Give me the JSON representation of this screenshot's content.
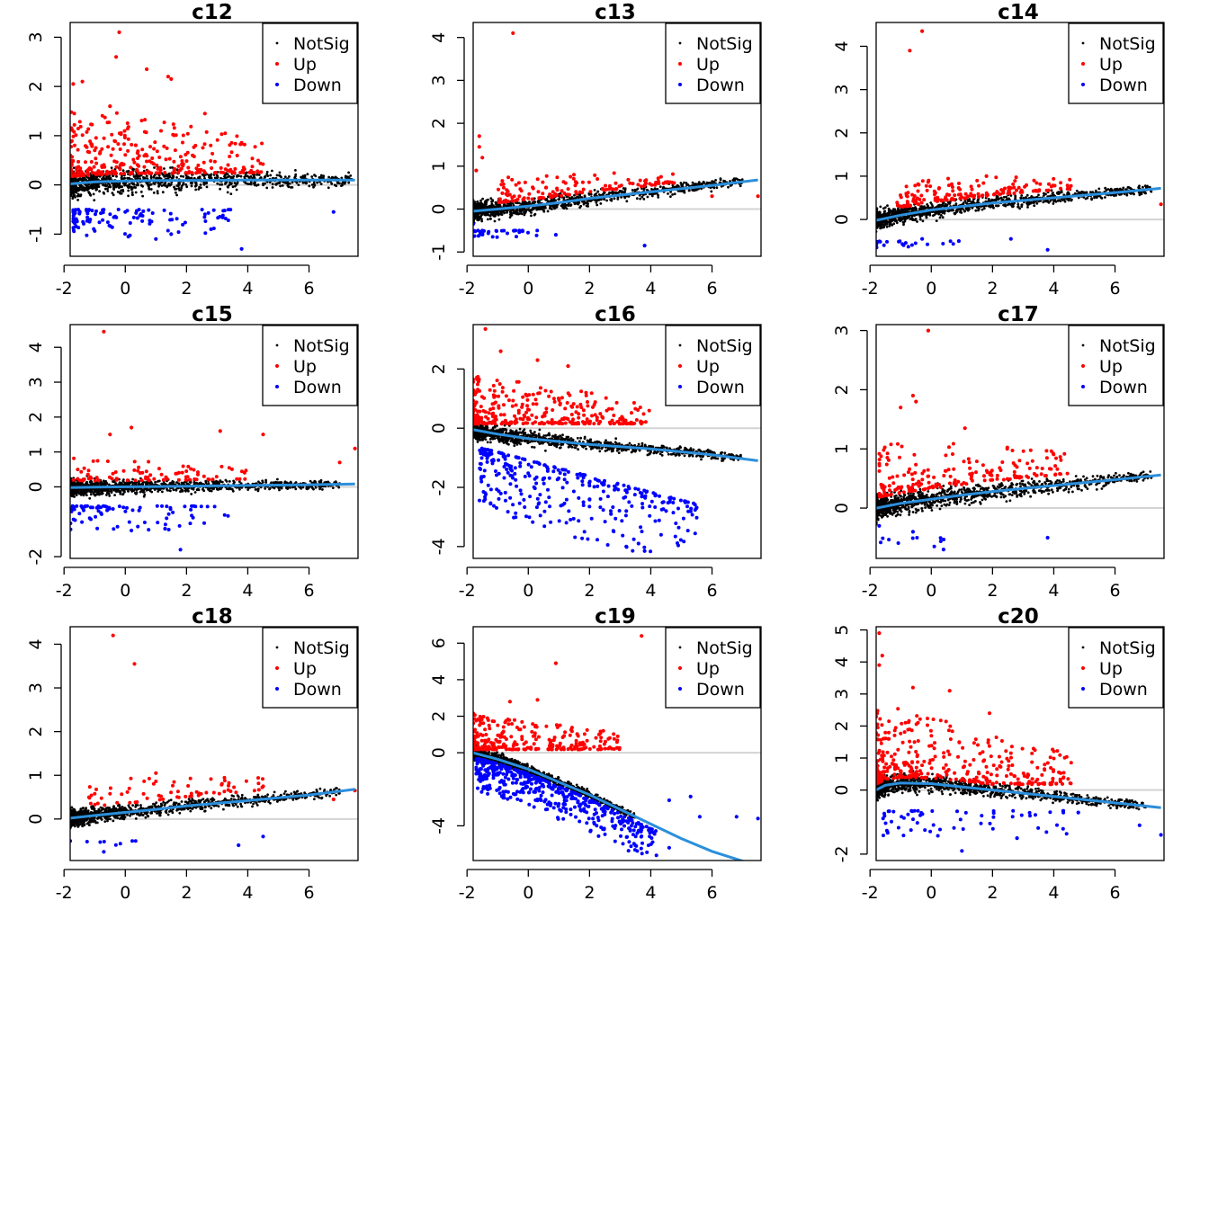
{
  "figure": {
    "kind": "MD plot grid",
    "legend_entries": [
      "NotSig",
      "Up",
      "Down"
    ]
  },
  "colors": {
    "notsig": "#000000",
    "up": "#ff0000",
    "down": "#0000ff",
    "trend": "#2b8fdc",
    "zero_line": "#d3d3d3",
    "axis": "#000000"
  },
  "chart_data": [
    {
      "type": "scatter",
      "title": "c12",
      "xlim": [
        -1.8,
        7.6
      ],
      "ylim": [
        -1.45,
        3.3
      ],
      "xticks": [
        -2,
        0,
        2,
        4,
        6
      ],
      "yticks": [
        -1,
        0,
        1,
        2,
        3
      ],
      "legend": [
        "NotSig",
        "Up",
        "Down"
      ],
      "trend": {
        "x": [
          -1.8,
          -1,
          0,
          1,
          2,
          4,
          6,
          7.5
        ],
        "y": [
          0.02,
          0.06,
          0.08,
          0.09,
          0.09,
          0.1,
          0.1,
          0.1
        ]
      },
      "highlight_points": {
        "up": [
          [
            -0.2,
            3.1
          ],
          [
            -0.3,
            2.6
          ],
          [
            0.7,
            2.35
          ],
          [
            1.5,
            2.15
          ],
          [
            1.4,
            2.2
          ],
          [
            -1.4,
            2.1
          ],
          [
            -1.7,
            2.05
          ],
          [
            2.6,
            1.45
          ],
          [
            -0.5,
            1.6
          ]
        ],
        "down": [
          [
            3.8,
            -1.3
          ],
          [
            1.0,
            -1.1
          ],
          [
            0.1,
            -1.05
          ],
          [
            1.5,
            -1.0
          ],
          [
            2.8,
            -0.9
          ],
          [
            6.8,
            -0.55
          ]
        ]
      },
      "clouds": {
        "notsig": {
          "n": 1100,
          "x": [
            -1.8,
            7.4
          ],
          "y": [
            -0.3,
            0.3
          ],
          "trend": true
        },
        "up": {
          "n": 320,
          "x": [
            -1.8,
            4.5
          ],
          "y": [
            0.25,
            1.7
          ],
          "decay": 0.55
        },
        "down": {
          "n": 110,
          "x": [
            -1.7,
            3.8
          ],
          "y": [
            -0.8,
            -0.25
          ],
          "decay": 0.7
        }
      }
    },
    {
      "type": "scatter",
      "title": "c13",
      "xlim": [
        -1.8,
        7.6
      ],
      "ylim": [
        -1.1,
        4.35
      ],
      "xticks": [
        -2,
        0,
        2,
        4,
        6
      ],
      "yticks": [
        -1,
        0,
        1,
        2,
        3,
        4
      ],
      "legend": [
        "NotSig",
        "Up",
        "Down"
      ],
      "trend": {
        "x": [
          -1.8,
          -1,
          0,
          1,
          2,
          4,
          6,
          7.5
        ],
        "y": [
          -0.05,
          0.0,
          0.07,
          0.15,
          0.25,
          0.4,
          0.55,
          0.68
        ]
      },
      "highlight_points": {
        "up": [
          [
            -0.5,
            4.1
          ],
          [
            -1.6,
            1.7
          ],
          [
            -1.6,
            1.45
          ],
          [
            -1.5,
            1.2
          ],
          [
            -1.7,
            0.9
          ],
          [
            7.5,
            0.3
          ],
          [
            6.0,
            0.3
          ]
        ],
        "down": [
          [
            3.8,
            -0.85
          ],
          [
            0.9,
            -0.6
          ],
          [
            -1.8,
            -0.35
          ]
        ]
      },
      "clouds": {
        "notsig": {
          "n": 1200,
          "x": [
            -1.8,
            7.0
          ],
          "y": [
            -0.22,
            0.22
          ],
          "trend": true
        },
        "up": {
          "n": 130,
          "x": [
            -1.0,
            4.8
          ],
          "y": [
            0.25,
            0.85
          ],
          "decay": 0.3
        },
        "down": {
          "n": 35,
          "x": [
            -1.8,
            0.5
          ],
          "y": [
            -0.45,
            -0.25
          ],
          "decay": 0.5
        }
      }
    },
    {
      "type": "scatter",
      "title": "c14",
      "xlim": [
        -1.8,
        7.6
      ],
      "ylim": [
        -0.85,
        4.55
      ],
      "xticks": [
        -2,
        0,
        2,
        4,
        6
      ],
      "yticks": [
        0,
        1,
        2,
        3,
        4
      ],
      "legend": [
        "NotSig",
        "Up",
        "Down"
      ],
      "trend": {
        "x": [
          -1.8,
          -1,
          0,
          1,
          2,
          4,
          6,
          7.5
        ],
        "y": [
          -0.02,
          0.1,
          0.22,
          0.3,
          0.38,
          0.5,
          0.62,
          0.72
        ]
      },
      "highlight_points": {
        "up": [
          [
            -0.3,
            4.35
          ],
          [
            -0.7,
            3.9
          ],
          [
            7.5,
            0.35
          ],
          [
            1.8,
            1.0
          ]
        ],
        "down": [
          [
            3.8,
            -0.7
          ],
          [
            0.9,
            -0.5
          ],
          [
            2.6,
            -0.45
          ],
          [
            -0.3,
            -0.45
          ]
        ]
      },
      "clouds": {
        "notsig": {
          "n": 1200,
          "x": [
            -1.8,
            7.2
          ],
          "y": [
            -0.22,
            0.22
          ],
          "trend": true
        },
        "up": {
          "n": 160,
          "x": [
            -1.2,
            4.6
          ],
          "y": [
            0.3,
            0.9
          ],
          "decay": 0.35
        },
        "down": {
          "n": 20,
          "x": [
            -1.8,
            2.5
          ],
          "y": [
            -0.45,
            -0.25
          ],
          "decay": 0.6
        }
      }
    },
    {
      "type": "scatter",
      "title": "c15",
      "xlim": [
        -1.8,
        7.6
      ],
      "ylim": [
        -2.05,
        4.65
      ],
      "xticks": [
        -2,
        0,
        2,
        4,
        6
      ],
      "yticks": [
        -2,
        0,
        1,
        2,
        3,
        4
      ],
      "legend": [
        "NotSig",
        "Up",
        "Down"
      ],
      "trend": {
        "x": [
          -1.8,
          -1,
          0,
          1,
          2,
          4,
          6,
          7.5
        ],
        "y": [
          -0.02,
          -0.01,
          0.0,
          0.01,
          0.02,
          0.04,
          0.06,
          0.08
        ]
      },
      "highlight_points": {
        "up": [
          [
            -0.7,
            4.45
          ],
          [
            3.1,
            1.6
          ],
          [
            0.2,
            1.7
          ],
          [
            4.5,
            1.5
          ],
          [
            7.5,
            1.1
          ],
          [
            -0.5,
            1.5
          ],
          [
            7.0,
            0.7
          ]
        ],
        "down": [
          [
            1.8,
            -1.8
          ],
          [
            0.2,
            -1.25
          ],
          [
            1.3,
            -1.2
          ]
        ]
      },
      "clouds": {
        "notsig": {
          "n": 1150,
          "x": [
            -1.8,
            7.0
          ],
          "y": [
            -0.25,
            0.25
          ],
          "trend": true
        },
        "up": {
          "n": 85,
          "x": [
            -1.7,
            4.0
          ],
          "y": [
            0.3,
            1.0
          ],
          "decay": 0.35
        },
        "down": {
          "n": 80,
          "x": [
            -1.8,
            3.5
          ],
          "y": [
            -1.0,
            -0.3
          ],
          "decay": 0.45
        }
      }
    },
    {
      "type": "scatter",
      "title": "c16",
      "xlim": [
        -1.8,
        7.6
      ],
      "ylim": [
        -4.4,
        3.5
      ],
      "xticks": [
        -2,
        0,
        2,
        4,
        6
      ],
      "yticks": [
        -4,
        -2,
        0,
        2
      ],
      "legend": [
        "NotSig",
        "Up",
        "Down"
      ],
      "trend": {
        "x": [
          -1.8,
          -1,
          0,
          1,
          2,
          4,
          6,
          7.5
        ],
        "y": [
          -0.05,
          -0.2,
          -0.35,
          -0.45,
          -0.55,
          -0.7,
          -0.9,
          -1.1
        ]
      },
      "highlight_points": {
        "up": [
          [
            -1.4,
            3.35
          ],
          [
            -0.9,
            2.6
          ],
          [
            0.3,
            2.3
          ],
          [
            1.3,
            2.1
          ]
        ],
        "down": [
          [
            3.2,
            -4.0
          ],
          [
            3.6,
            -3.9
          ],
          [
            3.8,
            -4.15
          ],
          [
            2.7,
            -2.9
          ],
          [
            3.2,
            -2.8
          ],
          [
            4.5,
            -2.8
          ],
          [
            2.0,
            -2.4
          ],
          [
            1.8,
            -2.5
          ]
        ]
      },
      "clouds": {
        "notsig": {
          "n": 1200,
          "x": [
            -1.8,
            7.0
          ],
          "y": [
            -0.3,
            0.3
          ],
          "trend": true
        },
        "up": {
          "n": 330,
          "x": [
            -1.8,
            4.0
          ],
          "y": [
            0.25,
            1.9
          ],
          "decay": 0.55
        },
        "down": {
          "n": 320,
          "x": [
            -1.6,
            5.5
          ],
          "y": [
            -2.6,
            -0.4
          ],
          "decay": 0.45,
          "slope": -0.45
        }
      }
    },
    {
      "type": "scatter",
      "title": "c17",
      "xlim": [
        -1.8,
        7.6
      ],
      "ylim": [
        -0.85,
        3.1
      ],
      "xticks": [
        -2,
        0,
        2,
        4,
        6
      ],
      "yticks": [
        0,
        1,
        2,
        3
      ],
      "legend": [
        "NotSig",
        "Up",
        "Down"
      ],
      "trend": {
        "x": [
          -1.8,
          -1,
          0,
          1,
          2,
          4,
          6,
          7.5
        ],
        "y": [
          0.0,
          0.08,
          0.15,
          0.22,
          0.28,
          0.38,
          0.48,
          0.56
        ]
      },
      "highlight_points": {
        "up": [
          [
            -0.1,
            3.0
          ],
          [
            -0.6,
            1.9
          ],
          [
            -0.5,
            1.8
          ],
          [
            -1.0,
            1.7
          ],
          [
            1.1,
            1.35
          ]
        ],
        "down": [
          [
            3.8,
            -0.5
          ],
          [
            0.4,
            -0.7
          ],
          [
            -0.6,
            -0.4
          ],
          [
            -1.7,
            -0.3
          ]
        ]
      },
      "clouds": {
        "notsig": {
          "n": 1150,
          "x": [
            -1.8,
            7.2
          ],
          "y": [
            -0.2,
            0.2
          ],
          "trend": true
        },
        "up": {
          "n": 190,
          "x": [
            -1.7,
            4.5
          ],
          "y": [
            0.3,
            1.2
          ],
          "decay": 0.45
        },
        "down": {
          "n": 10,
          "x": [
            -1.8,
            0.5
          ],
          "y": [
            -0.4,
            -0.25
          ],
          "decay": 0.5
        }
      }
    },
    {
      "type": "scatter",
      "title": "c18",
      "xlim": [
        -1.8,
        7.6
      ],
      "ylim": [
        -0.95,
        4.4
      ],
      "xticks": [
        -2,
        0,
        2,
        4,
        6
      ],
      "yticks": [
        0,
        1,
        2,
        3,
        4
      ],
      "legend": [
        "NotSig",
        "Up",
        "Down"
      ],
      "trend": {
        "x": [
          -1.8,
          -1,
          0,
          1,
          2,
          4,
          6,
          7.5
        ],
        "y": [
          0.02,
          0.08,
          0.15,
          0.22,
          0.3,
          0.42,
          0.55,
          0.68
        ]
      },
      "highlight_points": {
        "up": [
          [
            -0.4,
            4.2
          ],
          [
            0.3,
            3.55
          ],
          [
            1.0,
            1.05
          ],
          [
            7.5,
            0.65
          ],
          [
            6.8,
            0.45
          ]
        ],
        "down": [
          [
            -0.7,
            -0.75
          ],
          [
            3.7,
            -0.6
          ],
          [
            4.5,
            -0.4
          ]
        ]
      },
      "clouds": {
        "notsig": {
          "n": 1150,
          "x": [
            -1.8,
            7.0
          ],
          "y": [
            -0.2,
            0.2
          ],
          "trend": true
        },
        "up": {
          "n": 70,
          "x": [
            -1.2,
            4.6
          ],
          "y": [
            0.35,
            1.0
          ],
          "decay": 0.35
        },
        "down": {
          "n": 8,
          "x": [
            -1.8,
            0.5
          ],
          "y": [
            -0.35,
            -0.25
          ],
          "decay": 0.6
        }
      }
    },
    {
      "type": "scatter",
      "title": "c19",
      "xlim": [
        -1.8,
        7.6
      ],
      "ylim": [
        -5.9,
        6.9
      ],
      "xticks": [
        -2,
        0,
        2,
        4,
        6
      ],
      "yticks": [
        -4,
        0,
        2,
        4,
        6
      ],
      "legend": [
        "NotSig",
        "Up",
        "Down"
      ],
      "trend": {
        "x": [
          -1.8,
          -1,
          0,
          1,
          2,
          3,
          4,
          5,
          6,
          7.5
        ],
        "y": [
          0.0,
          -0.35,
          -0.9,
          -1.6,
          -2.3,
          -3.1,
          -3.9,
          -4.7,
          -5.4,
          -6.2
        ]
      },
      "highlight_points": {
        "up": [
          [
            3.7,
            6.4
          ],
          [
            0.9,
            4.9
          ],
          [
            0.3,
            2.9
          ],
          [
            -0.6,
            2.8
          ]
        ],
        "down": [
          [
            4.6,
            -5.2
          ],
          [
            3.6,
            -4.3
          ],
          [
            5.6,
            -3.5
          ],
          [
            6.8,
            -3.5
          ],
          [
            7.5,
            -3.6
          ],
          [
            5.3,
            -2.4
          ],
          [
            4.6,
            -2.6
          ]
        ]
      },
      "clouds": {
        "notsig": {
          "n": 1150,
          "x": [
            -1.8,
            3.5
          ],
          "y": [
            -0.35,
            0.35
          ],
          "trend": true
        },
        "up": {
          "n": 280,
          "x": [
            -1.8,
            3.0
          ],
          "y": [
            0.3,
            2.3
          ],
          "decay": 0.55
        },
        "down": {
          "n": 460,
          "x": [
            -1.7,
            4.2
          ],
          "y": [
            -1.5,
            0.3
          ],
          "decay": 0.45,
          "follow_trend": true
        }
      }
    },
    {
      "type": "scatter",
      "title": "c20",
      "xlim": [
        -1.8,
        7.6
      ],
      "ylim": [
        -2.2,
        5.1
      ],
      "xticks": [
        -2,
        0,
        2,
        4,
        6
      ],
      "yticks": [
        -2,
        0,
        1,
        2,
        3,
        4,
        5
      ],
      "legend": [
        "NotSig",
        "Up",
        "Down"
      ],
      "trend": {
        "x": [
          -1.8,
          -1.5,
          -1,
          0,
          1,
          2,
          4,
          6,
          7.5
        ],
        "y": [
          0.0,
          0.15,
          0.22,
          0.2,
          0.1,
          0.0,
          -0.2,
          -0.4,
          -0.55
        ]
      },
      "highlight_points": {
        "up": [
          [
            -1.7,
            4.9
          ],
          [
            -1.6,
            4.2
          ],
          [
            -1.7,
            3.9
          ],
          [
            0.6,
            3.1
          ],
          [
            1.9,
            2.4
          ],
          [
            -0.6,
            3.2
          ]
        ],
        "down": [
          [
            1.0,
            -1.9
          ],
          [
            2.8,
            -1.5
          ],
          [
            7.5,
            -1.4
          ],
          [
            6.8,
            -1.1
          ],
          [
            4.8,
            -0.7
          ]
        ]
      },
      "clouds": {
        "notsig": {
          "n": 1200,
          "x": [
            -1.8,
            7.0
          ],
          "y": [
            -0.3,
            0.3
          ],
          "trend": true
        },
        "up": {
          "n": 360,
          "x": [
            -1.8,
            4.6
          ],
          "y": [
            0.3,
            2.6
          ],
          "decay": 0.6
        },
        "down": {
          "n": 60,
          "x": [
            -1.6,
            4.5
          ],
          "y": [
            -1.2,
            -0.4
          ],
          "decay": 0.4
        }
      }
    }
  ]
}
